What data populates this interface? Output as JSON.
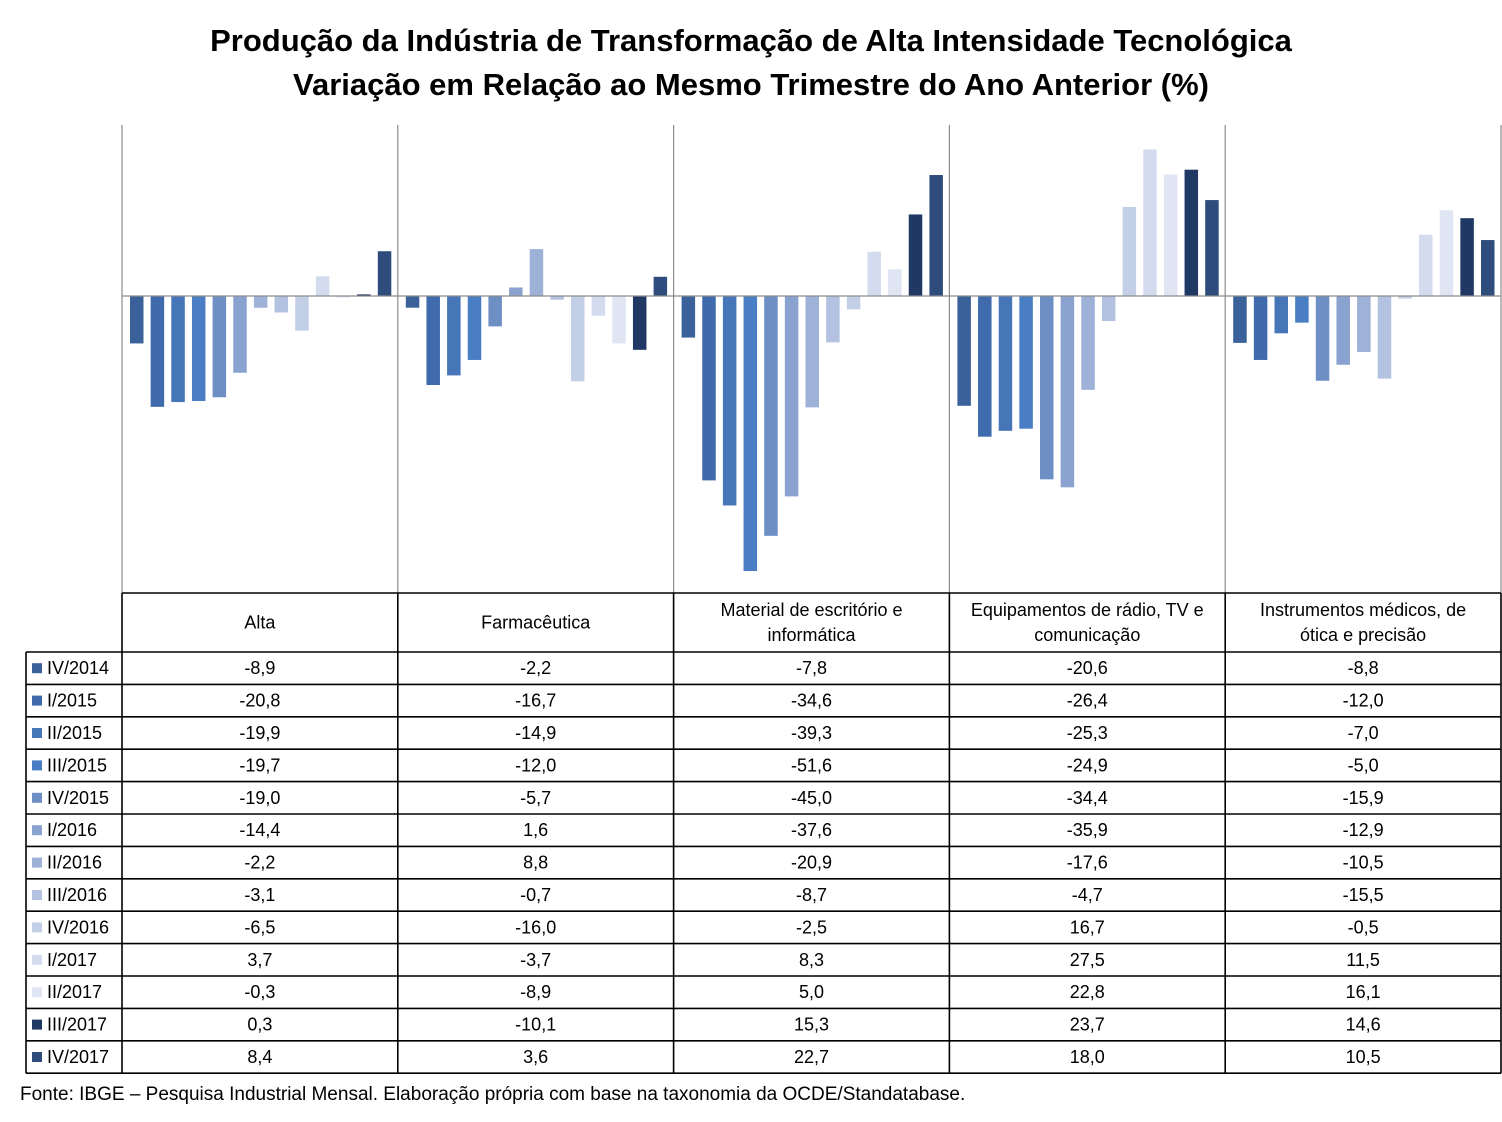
{
  "title": "Produção da Indústria de Transformação de Alta Intensidade Tecnológica",
  "subtitle": "Variação em Relação ao Mesmo Trimestre do Ano Anterior (%)",
  "source": "Fonte: IBGE – Pesquisa Industrial Mensal. Elaboração própria com base na taxonomia da OCDE/Standatabase.",
  "colors": {
    "IV/2014": "#3b619a",
    "I/2015": "#3f6aac",
    "II/2015": "#4676b8",
    "III/2015": "#4a7ec4",
    "IV/2015": "#6e8fc4",
    "I/2016": "#8aa2cf",
    "II/2016": "#9eb1d7",
    "III/2016": "#b3c2e0",
    "IV/2016": "#c3cfe7",
    "I/2017": "#d3dcee",
    "II/2017": "#dfe5f2",
    "III/2017": "#1f3864",
    "IV/2017": "#2e4d7c"
  },
  "chart_data": {
    "type": "bar",
    "title": "Produção da Indústria de Transformação de Alta Intensidade Tecnológica",
    "subtitle": "Variação em Relação ao Mesmo Trimestre do Ano Anterior (%)",
    "categories": [
      "Alta",
      "Farmacêutica",
      "Material de escritório e informática",
      "Equipamentos de rádio, TV e comunicação",
      "Instrumentos médicos, de ótica e precisão"
    ],
    "category_lines": [
      [
        "Alta"
      ],
      [
        "Farmacêutica"
      ],
      [
        "Material de escritório e",
        "informática"
      ],
      [
        "Equipamentos de rádio, TV e",
        "comunicação"
      ],
      [
        "Instrumentos médicos, de",
        "ótica e precisão"
      ]
    ],
    "ylim": [
      -52,
      28
    ],
    "series": [
      {
        "name": "IV/2014",
        "values": [
          -8.9,
          -2.2,
          -7.8,
          -20.6,
          -8.8
        ],
        "labels": [
          "-8,9",
          "-2,2",
          "-7,8",
          "-20,6",
          "-8,8"
        ]
      },
      {
        "name": "I/2015",
        "values": [
          -20.8,
          -16.7,
          -34.6,
          -26.4,
          -12.0
        ],
        "labels": [
          "-20,8",
          "-16,7",
          "-34,6",
          "-26,4",
          "-12,0"
        ]
      },
      {
        "name": "II/2015",
        "values": [
          -19.9,
          -14.9,
          -39.3,
          -25.3,
          -7.0
        ],
        "labels": [
          "-19,9",
          "-14,9",
          "-39,3",
          "-25,3",
          "-7,0"
        ]
      },
      {
        "name": "III/2015",
        "values": [
          -19.7,
          -12.0,
          -51.6,
          -24.9,
          -5.0
        ],
        "labels": [
          "-19,7",
          "-12,0",
          "-51,6",
          "-24,9",
          "-5,0"
        ]
      },
      {
        "name": "IV/2015",
        "values": [
          -19.0,
          -5.7,
          -45.0,
          -34.4,
          -15.9
        ],
        "labels": [
          "-19,0",
          "-5,7",
          "-45,0",
          "-34,4",
          "-15,9"
        ]
      },
      {
        "name": "I/2016",
        "values": [
          -14.4,
          1.6,
          -37.6,
          -35.9,
          -12.9
        ],
        "labels": [
          "-14,4",
          "1,6",
          "-37,6",
          "-35,9",
          "-12,9"
        ]
      },
      {
        "name": "II/2016",
        "values": [
          -2.2,
          8.8,
          -20.9,
          -17.6,
          -10.5
        ],
        "labels": [
          "-2,2",
          "8,8",
          "-20,9",
          "-17,6",
          "-10,5"
        ]
      },
      {
        "name": "III/2016",
        "values": [
          -3.1,
          -0.7,
          -8.7,
          -4.7,
          -15.5
        ],
        "labels": [
          "-3,1",
          "-0,7",
          "-8,7",
          "-4,7",
          "-15,5"
        ]
      },
      {
        "name": "IV/2016",
        "values": [
          -6.5,
          -16.0,
          -2.5,
          16.7,
          -0.5
        ],
        "labels": [
          "-6,5",
          "-16,0",
          "-2,5",
          "16,7",
          "-0,5"
        ]
      },
      {
        "name": "I/2017",
        "values": [
          3.7,
          -3.7,
          8.3,
          27.5,
          11.5
        ],
        "labels": [
          "3,7",
          "-3,7",
          "8,3",
          "27,5",
          "11,5"
        ]
      },
      {
        "name": "II/2017",
        "values": [
          -0.3,
          -8.9,
          5.0,
          22.8,
          16.1
        ],
        "labels": [
          "-0,3",
          "-8,9",
          "5,0",
          "22,8",
          "16,1"
        ]
      },
      {
        "name": "III/2017",
        "values": [
          0.3,
          -10.1,
          15.3,
          23.7,
          14.6
        ],
        "labels": [
          "0,3",
          "-10,1",
          "15,3",
          "23,7",
          "14,6"
        ]
      },
      {
        "name": "IV/2017",
        "values": [
          8.4,
          3.6,
          22.7,
          18.0,
          10.5
        ],
        "labels": [
          "8,4",
          "3,6",
          "22,7",
          "18,0",
          "10,5"
        ]
      }
    ],
    "legend": "data table below chart",
    "grid": false
  }
}
